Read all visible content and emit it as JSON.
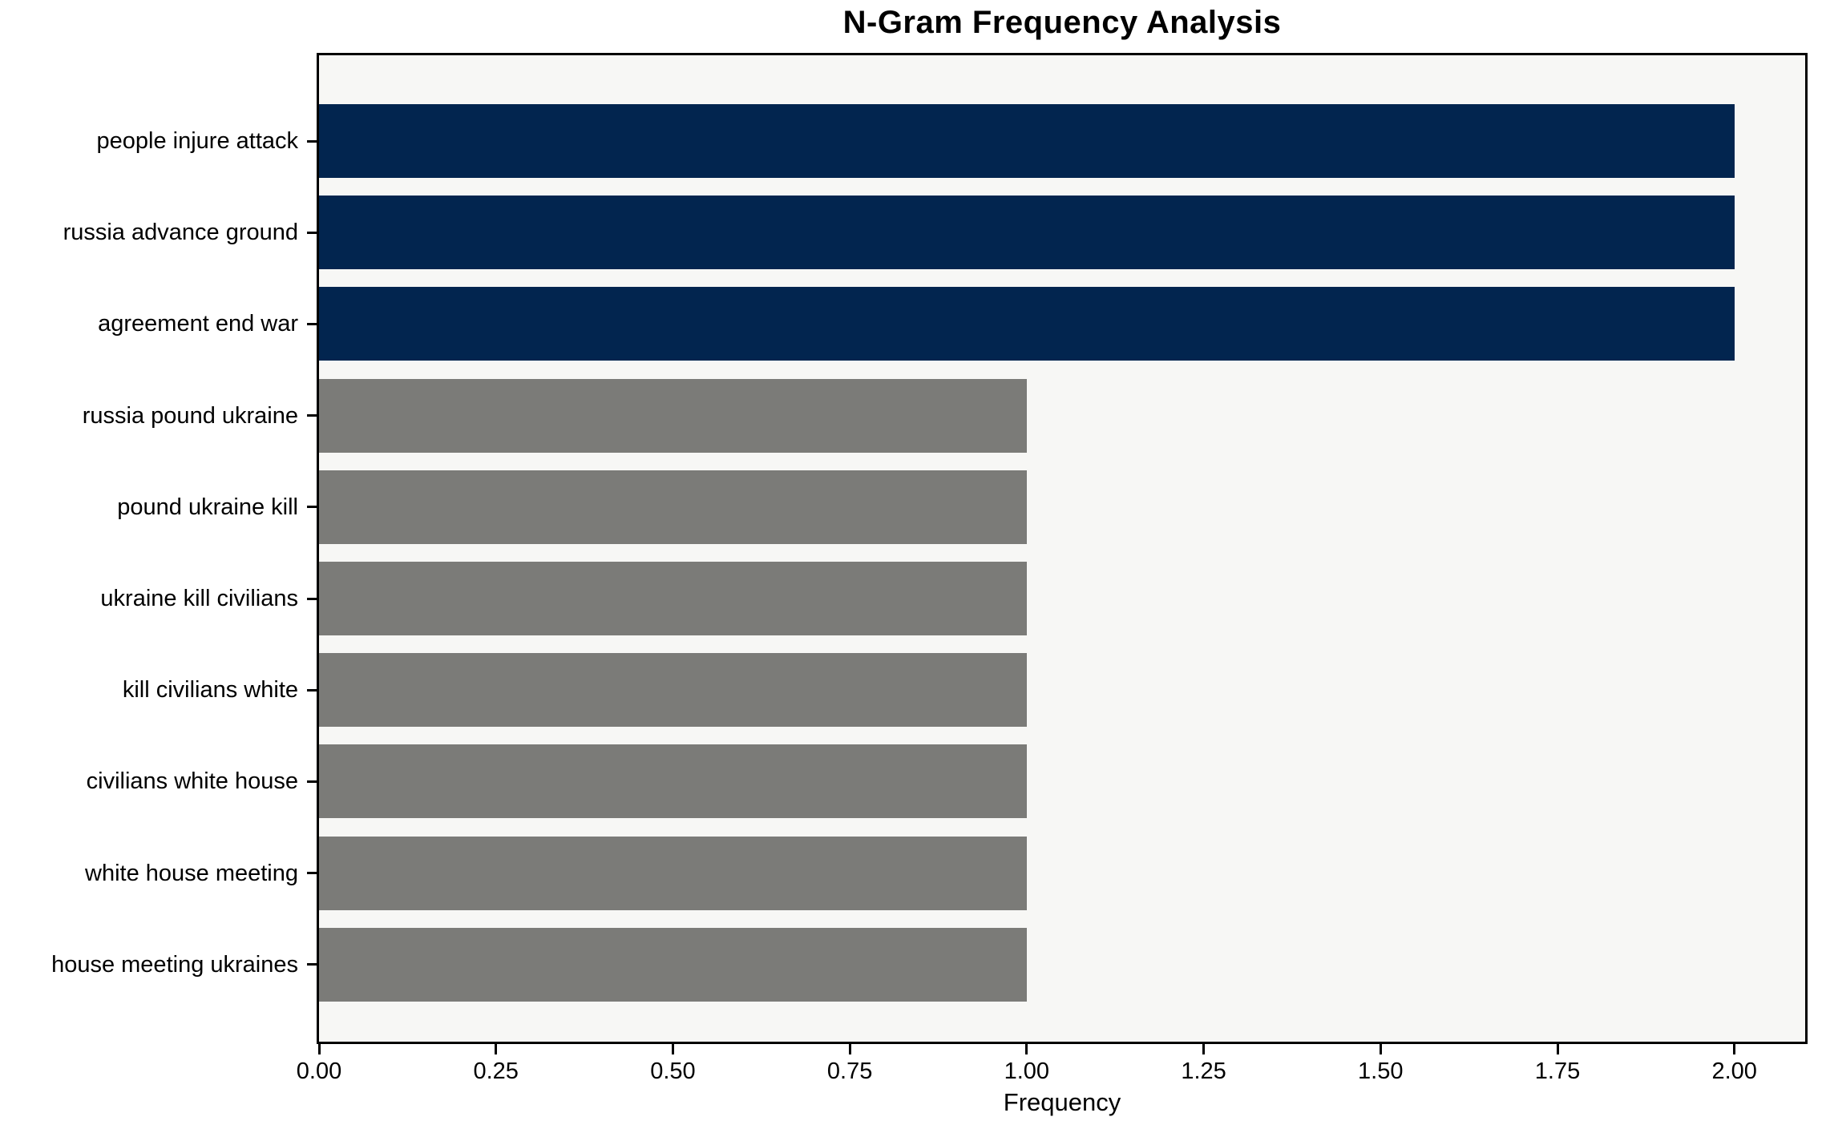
{
  "chart_data": {
    "type": "bar",
    "orientation": "horizontal",
    "title": "N-Gram Frequency Analysis",
    "xlabel": "Frequency",
    "ylabel": "",
    "categories": [
      "people injure attack",
      "russia advance ground",
      "agreement end war",
      "russia pound ukraine",
      "pound ukraine kill",
      "ukraine kill civilians",
      "kill civilians white",
      "civilians white house",
      "white house meeting",
      "house meeting ukraines"
    ],
    "values": [
      2,
      2,
      2,
      1,
      1,
      1,
      1,
      1,
      1,
      1
    ],
    "bar_colors": [
      "#02254F",
      "#02254F",
      "#02254F",
      "#7B7B78",
      "#7B7B78",
      "#7B7B78",
      "#7B7B78",
      "#7B7B78",
      "#7B7B78",
      "#7B7B78"
    ],
    "xlim": [
      0,
      2.1
    ],
    "xtick_values": [
      0,
      0.25,
      0.5,
      0.75,
      1.0,
      1.25,
      1.5,
      1.75,
      2.0
    ],
    "xtick_labels": [
      "0.00",
      "0.25",
      "0.50",
      "0.75",
      "1.00",
      "1.25",
      "1.50",
      "1.75",
      "2.00"
    ],
    "grid": false,
    "legend": null
  },
  "colors": {
    "highlight_bar": "#02254F",
    "default_bar": "#7B7B78",
    "plot_background": "#F7F7F5",
    "figure_background": "#FFFFFF",
    "axis": "#000000",
    "text": "#000000"
  }
}
